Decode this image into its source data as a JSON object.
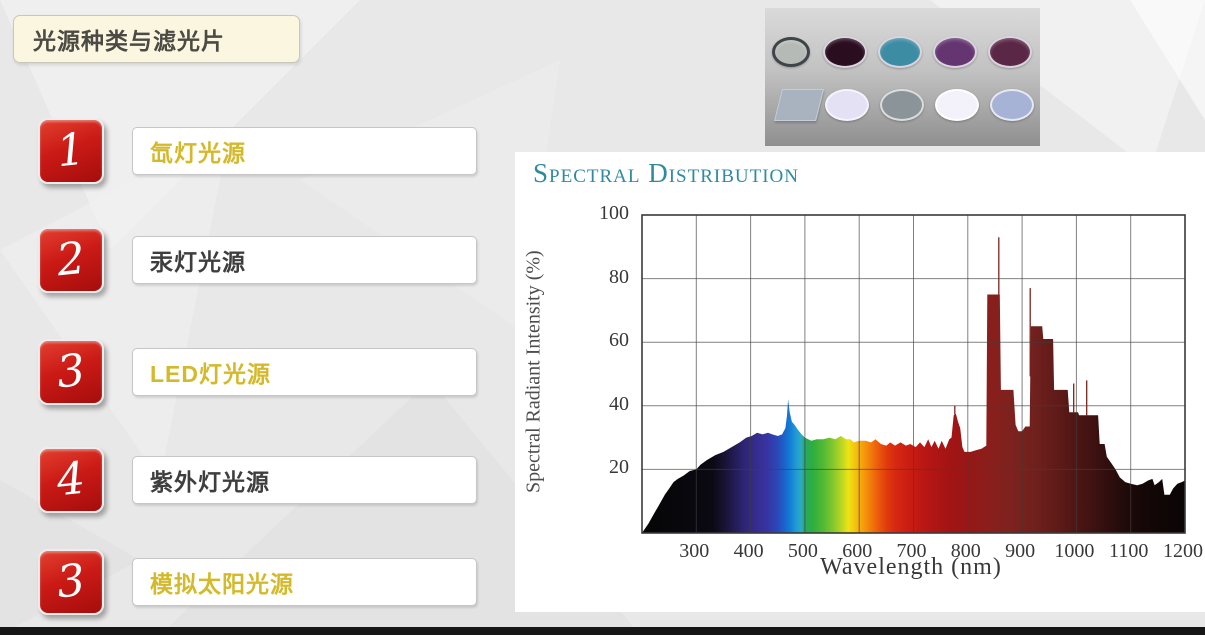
{
  "slide": {
    "title": "光源种类与滤光片",
    "items": [
      {
        "number": "1",
        "label": "氙灯光源",
        "style": "gold"
      },
      {
        "number": "2",
        "label": "汞灯光源",
        "style": "dark"
      },
      {
        "number": "3",
        "label": "LED灯光源",
        "style": "gold"
      },
      {
        "number": "4",
        "label": "紫外灯光源",
        "style": "dark"
      },
      {
        "number": "3",
        "label": "模拟太阳光源",
        "style": "gold"
      }
    ],
    "badge_red": "#c41512",
    "gold_text": "#d4ba2a",
    "dark_text": "#3e3e3e"
  },
  "filters_image": {
    "row1": [
      {
        "name": "gray-lens-filter",
        "fill": "#b5bab6",
        "rim": "#3f4448"
      },
      {
        "name": "dark-maroon-filter",
        "fill": "#2b0d20",
        "rim": "#d9d5de"
      },
      {
        "name": "teal-filter",
        "fill": "#3c8ca3",
        "rim": "#d9d5de"
      },
      {
        "name": "purple-filter",
        "fill": "#653571",
        "rim": "#d9d5de"
      },
      {
        "name": "plum-filter",
        "fill": "#5b2747",
        "rim": "#d9d5de"
      }
    ],
    "row2": [
      {
        "name": "square-glass-filter",
        "fill": "#a9b2bf",
        "rim": "#c6cdd8",
        "shape": "square"
      },
      {
        "name": "lavender-filter",
        "fill": "#e4e1f4",
        "rim": "#f6f4fb"
      },
      {
        "name": "gray-filter",
        "fill": "#8b9499",
        "rim": "#dcdcdc"
      },
      {
        "name": "white-filter",
        "fill": "#f3f1fa",
        "rim": "#ffffff"
      },
      {
        "name": "periwinkle-filter",
        "fill": "#a7b3d6",
        "rim": "#e6e8f2"
      }
    ]
  },
  "chart_data": {
    "type": "area",
    "title": "Spectral Distribution",
    "xlabel": "Wavelength (nm)",
    "ylabel": "Spectral Radiant Intensity (%)",
    "xlim": [
      200,
      1200
    ],
    "ylim": [
      0,
      100
    ],
    "x_ticks": [
      300,
      400,
      500,
      600,
      700,
      800,
      900,
      1000,
      1100,
      1200
    ],
    "y_ticks": [
      100,
      80,
      60,
      40,
      20
    ],
    "grid": true,
    "points": [
      [
        200,
        0
      ],
      [
        212,
        3
      ],
      [
        222,
        6
      ],
      [
        232,
        9
      ],
      [
        242,
        12
      ],
      [
        250,
        14
      ],
      [
        258,
        16
      ],
      [
        266,
        17
      ],
      [
        276,
        18
      ],
      [
        288,
        19.5
      ],
      [
        300,
        20
      ],
      [
        308,
        21.5
      ],
      [
        320,
        23
      ],
      [
        335,
        24.5
      ],
      [
        350,
        25.5
      ],
      [
        365,
        27
      ],
      [
        380,
        28.5
      ],
      [
        392,
        30
      ],
      [
        402,
        30.5
      ],
      [
        412,
        31.5
      ],
      [
        422,
        31
      ],
      [
        432,
        31.5
      ],
      [
        440,
        31
      ],
      [
        450,
        30.5
      ],
      [
        458,
        31
      ],
      [
        464,
        33
      ],
      [
        467,
        37
      ],
      [
        469,
        42
      ],
      [
        472,
        38
      ],
      [
        476,
        35
      ],
      [
        481,
        34
      ],
      [
        487,
        32.5
      ],
      [
        494,
        31
      ],
      [
        500,
        30
      ],
      [
        506,
        29.5
      ],
      [
        512,
        29
      ],
      [
        522,
        29.5
      ],
      [
        534,
        29.5
      ],
      [
        545,
        30
      ],
      [
        556,
        29.5
      ],
      [
        566,
        30.5
      ],
      [
        576,
        29.5
      ],
      [
        584,
        29.5
      ],
      [
        590,
        28.5
      ],
      [
        600,
        29
      ],
      [
        612,
        29
      ],
      [
        622,
        28.5
      ],
      [
        630,
        29.5
      ],
      [
        640,
        28
      ],
      [
        650,
        27.5
      ],
      [
        657,
        28.5
      ],
      [
        666,
        27.5
      ],
      [
        676,
        28.5
      ],
      [
        686,
        27.5
      ],
      [
        694,
        28
      ],
      [
        704,
        27
      ],
      [
        712,
        28.5
      ],
      [
        720,
        27
      ],
      [
        727,
        29.5
      ],
      [
        733,
        27
      ],
      [
        739,
        29
      ],
      [
        746,
        26.5
      ],
      [
        752,
        29
      ],
      [
        759,
        26.5
      ],
      [
        766,
        29.5
      ],
      [
        770,
        30
      ],
      [
        774,
        37
      ],
      [
        778,
        37.5
      ],
      [
        782,
        35
      ],
      [
        786,
        33
      ],
      [
        790,
        27
      ],
      [
        794,
        25.5
      ],
      [
        805,
        25.5
      ],
      [
        815,
        26
      ],
      [
        825,
        26.5
      ],
      [
        834,
        27.5
      ],
      [
        836,
        75
      ],
      [
        859,
        75
      ],
      [
        861,
        45
      ],
      [
        884,
        45
      ],
      [
        888,
        34
      ],
      [
        893,
        32
      ],
      [
        900,
        32
      ],
      [
        906,
        33.5
      ],
      [
        914,
        33.5
      ],
      [
        916,
        65
      ],
      [
        937,
        65
      ],
      [
        939,
        61
      ],
      [
        957,
        61
      ],
      [
        959,
        45
      ],
      [
        984,
        45
      ],
      [
        987,
        38
      ],
      [
        1003,
        38
      ],
      [
        1005,
        37
      ],
      [
        1040,
        37
      ],
      [
        1043,
        28
      ],
      [
        1052,
        28
      ],
      [
        1056,
        24
      ],
      [
        1064,
        22
      ],
      [
        1072,
        20
      ],
      [
        1080,
        17.5
      ],
      [
        1090,
        16
      ],
      [
        1100,
        15.5
      ],
      [
        1112,
        15
      ],
      [
        1122,
        15.5
      ],
      [
        1132,
        16.5
      ],
      [
        1140,
        17
      ],
      [
        1144,
        15
      ],
      [
        1152,
        16
      ],
      [
        1158,
        17
      ],
      [
        1162,
        12
      ],
      [
        1172,
        12
      ],
      [
        1178,
        14
      ],
      [
        1186,
        15.5
      ],
      [
        1194,
        16
      ],
      [
        1200,
        16.5
      ]
    ],
    "spikes": [
      [
        776,
        40
      ],
      [
        857,
        93
      ],
      [
        915,
        77
      ],
      [
        995,
        47
      ],
      [
        1019,
        48
      ]
    ],
    "spectrum_gradient": [
      [
        200,
        "#050505"
      ],
      [
        330,
        "#0b0912"
      ],
      [
        360,
        "#1c1740"
      ],
      [
        385,
        "#2c2470"
      ],
      [
        410,
        "#362c8e"
      ],
      [
        430,
        "#3834a2"
      ],
      [
        448,
        "#2c46b6"
      ],
      [
        462,
        "#1a62cc"
      ],
      [
        472,
        "#127cd4"
      ],
      [
        483,
        "#2098d8"
      ],
      [
        493,
        "#2cacc4"
      ],
      [
        500,
        "#2aa662"
      ],
      [
        515,
        "#2eae3e"
      ],
      [
        535,
        "#55ba34"
      ],
      [
        555,
        "#8eca2c"
      ],
      [
        570,
        "#c4d822"
      ],
      [
        580,
        "#eee414"
      ],
      [
        592,
        "#f4c40e"
      ],
      [
        606,
        "#f5a00c"
      ],
      [
        620,
        "#f27e0a"
      ],
      [
        636,
        "#ea580c"
      ],
      [
        652,
        "#e0380e"
      ],
      [
        670,
        "#d42612"
      ],
      [
        695,
        "#c81c12"
      ],
      [
        725,
        "#b61614"
      ],
      [
        765,
        "#a41414"
      ],
      [
        805,
        "#951817"
      ],
      [
        845,
        "#881f1c"
      ],
      [
        885,
        "#7c221e"
      ],
      [
        925,
        "#6f201d"
      ],
      [
        965,
        "#5f1b18"
      ],
      [
        1005,
        "#4b1513"
      ],
      [
        1045,
        "#371010"
      ],
      [
        1085,
        "#220b0a"
      ],
      [
        1125,
        "#140707"
      ],
      [
        1200,
        "#0b0505"
      ]
    ],
    "grid_color": "#3f3f3f",
    "frame_color": "#3a3a3a",
    "title_color": "#2f8aa0"
  }
}
